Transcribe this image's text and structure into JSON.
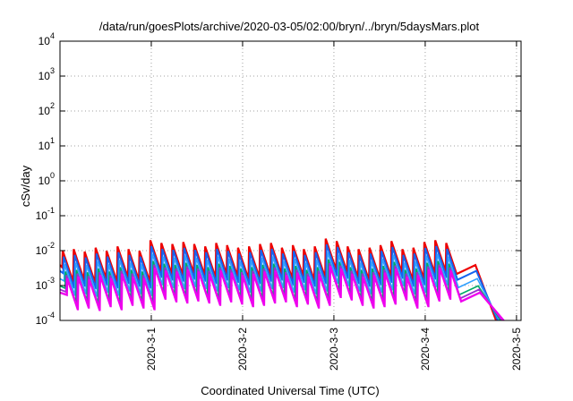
{
  "chart_data": {
    "type": "line",
    "title": "/data/run/goesPlots/archive/2020-03-05/02:00/bryn/../bryn/5daysMars.plot",
    "xlabel": "Coordinated Universal Time (UTC)",
    "ylabel": "cSv/day",
    "y_scale": "log",
    "ylim": [
      0.0001,
      10000
    ],
    "y_ticks": [
      {
        "base": "10",
        "exp": "-4",
        "value": 0.0001
      },
      {
        "base": "10",
        "exp": "-3",
        "value": 0.001
      },
      {
        "base": "10",
        "exp": "-2",
        "value": 0.01
      },
      {
        "base": "10",
        "exp": "-1",
        "value": 0.1
      },
      {
        "base": "10",
        "exp": "0",
        "value": 1
      },
      {
        "base": "10",
        "exp": "1",
        "value": 10
      },
      {
        "base": "10",
        "exp": "2",
        "value": 100
      },
      {
        "base": "10",
        "exp": "3",
        "value": 1000
      },
      {
        "base": "10",
        "exp": "4",
        "value": 10000
      }
    ],
    "x_unit": "day",
    "xlim": [
      -1.0,
      4.05
    ],
    "x_ticks": [
      {
        "label": "2020-3-1",
        "value": 0
      },
      {
        "label": "2020-3-2",
        "value": 1
      },
      {
        "label": "2020-3-3",
        "value": 2
      },
      {
        "label": "2020-3-4",
        "value": 3
      },
      {
        "label": "2020-3-5",
        "value": 4
      }
    ],
    "grid": true,
    "pattern": {
      "peak_times": [
        -0.97,
        -0.85,
        -0.73,
        -0.61,
        -0.49,
        -0.37,
        -0.25,
        -0.13,
        -0.01,
        0.11,
        0.23,
        0.35,
        0.47,
        0.59,
        0.71,
        0.83,
        0.95,
        1.07,
        1.19,
        1.31,
        1.43,
        1.55,
        1.67,
        1.79,
        1.91,
        2.03,
        2.15,
        2.27,
        2.39,
        2.51,
        2.63,
        2.75,
        2.87,
        2.99,
        3.11,
        3.23
      ],
      "peak_scale": [
        0.9,
        1.0,
        0.85,
        1.1,
        0.9,
        1.2,
        1.0,
        0.9,
        1.8,
        1.5,
        1.4,
        1.6,
        1.4,
        1.2,
        1.5,
        1.3,
        1.1,
        1.2,
        1.4,
        1.5,
        1.1,
        1.3,
        1.0,
        1.2,
        2.0,
        1.7,
        1.2,
        1.0,
        1.1,
        1.3,
        1.7,
        1.0,
        1.1,
        1.6,
        1.8,
        1.5
      ],
      "decay_to": 0.13,
      "dropoff": {
        "start": 3.55,
        "end": 3.79
      }
    },
    "series": [
      {
        "color": "#ee0000",
        "peak": 0.011,
        "width": 2.2,
        "offset": 0.0
      },
      {
        "color": "#1464f0",
        "peak": 0.0075,
        "width": 2.0,
        "offset": 0.01
      },
      {
        "color": "#30a0ff",
        "peak": 0.0045,
        "width": 1.6,
        "offset": 0.02
      },
      {
        "color": "#00aa66",
        "peak": 0.0028,
        "width": 1.6,
        "offset": 0.03
      },
      {
        "color": "#9a2fd0",
        "peak": 0.0022,
        "width": 1.8,
        "offset": 0.04
      },
      {
        "color": "#ee00ee",
        "peak": 0.0018,
        "width": 2.4,
        "offset": 0.05
      }
    ]
  }
}
